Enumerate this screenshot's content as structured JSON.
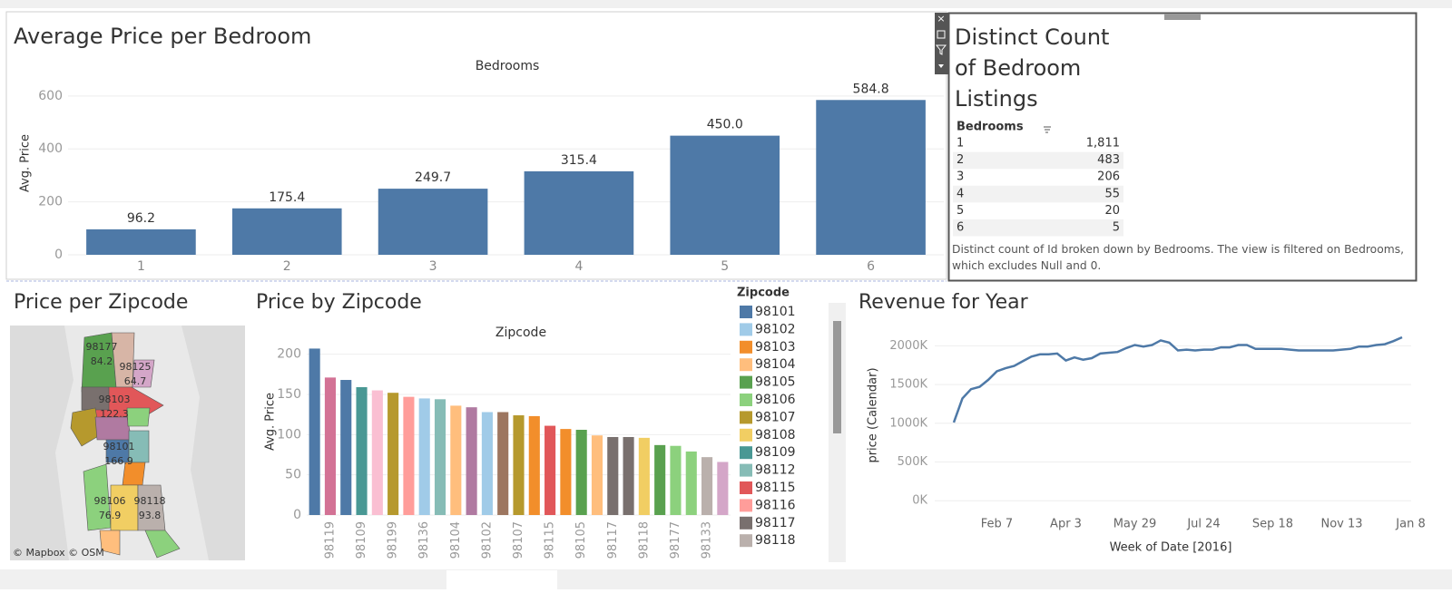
{
  "chart_data": [
    {
      "type": "bar",
      "title": "Average Price per Bedroom",
      "x_header": "Bedrooms",
      "y_label": "Avg. Price",
      "categories": [
        "1",
        "2",
        "3",
        "4",
        "5",
        "6"
      ],
      "values": [
        96.2,
        175.4,
        249.7,
        315.4,
        450.0,
        584.8
      ],
      "value_labels": [
        "96.2",
        "175.4",
        "249.7",
        "315.4",
        "450.0",
        "584.8"
      ],
      "color": "#4e79a7",
      "ylim": [
        0,
        620
      ],
      "yticks": [
        0,
        200,
        400,
        600
      ],
      "grid": true
    },
    {
      "type": "bar",
      "title": "Price by Zipcode",
      "x_header": "Zipcode",
      "y_label": "Avg. Price",
      "categories": [
        null,
        "98119",
        null,
        "98109",
        null,
        "98199",
        null,
        "98136",
        null,
        "98104",
        null,
        "98102",
        null,
        "98107",
        null,
        "98115",
        null,
        "98105",
        null,
        "98117",
        null,
        "98118",
        null,
        "98177",
        null,
        "98133",
        null
      ],
      "values": [
        207,
        171,
        168,
        159,
        155,
        152,
        147,
        145,
        144,
        136,
        134,
        128,
        128,
        124,
        123,
        111,
        107,
        106,
        99,
        97,
        97,
        96,
        87,
        86,
        79,
        72,
        66
      ],
      "colors": [
        "#4e79a7",
        "#d37295",
        "#4e79a7",
        "#499894",
        "#fabfd2",
        "#b6992d",
        "#ff9d9a",
        "#a0cbe8",
        "#86bcb6",
        "#ffbe7d",
        "#b07aa1",
        "#a0cbe8",
        "#9d7660",
        "#b6992d",
        "#f28e2b",
        "#e15759",
        "#f28e2b",
        "#59a14f",
        "#ffbe7d",
        "#79706e",
        "#79706e",
        "#f1ce63",
        "#59a14f",
        "#8cd17d",
        "#8cd17d",
        "#bab0ac",
        "#d4a6c8"
      ],
      "ylim": [
        0,
        212
      ],
      "yticks": [
        0,
        50,
        100,
        150,
        200
      ],
      "grid": true,
      "legend": {
        "title": "Zipcode",
        "position": "right",
        "items": [
          {
            "name": "98101",
            "color": "#4e79a7"
          },
          {
            "name": "98102",
            "color": "#a0cbe8"
          },
          {
            "name": "98103",
            "color": "#f28e2b"
          },
          {
            "name": "98104",
            "color": "#ffbe7d"
          },
          {
            "name": "98105",
            "color": "#59a14f"
          },
          {
            "name": "98106",
            "color": "#8cd17d"
          },
          {
            "name": "98107",
            "color": "#b6992d"
          },
          {
            "name": "98108",
            "color": "#f1ce63"
          },
          {
            "name": "98109",
            "color": "#499894"
          },
          {
            "name": "98112",
            "color": "#86bcb6"
          },
          {
            "name": "98115",
            "color": "#e15759"
          },
          {
            "name": "98116",
            "color": "#ff9d9a"
          },
          {
            "name": "98117",
            "color": "#79706e"
          },
          {
            "name": "98118",
            "color": "#bab0ac"
          }
        ]
      }
    },
    {
      "type": "line",
      "title": "Revenue for Year",
      "x_label": "Week of Date [2016]",
      "y_label": "price (Calendar)",
      "x": [
        "Jan 3",
        "Jan 10",
        "Jan 17",
        "Jan 24",
        "Jan 31",
        "Feb 7",
        "Feb 14",
        "Feb 21",
        "Feb 28",
        "Mar 6",
        "Mar 13",
        "Mar 20",
        "Mar 27",
        "Apr 3",
        "Apr 10",
        "Apr 17",
        "Apr 24",
        "May 1",
        "May 8",
        "May 15",
        "May 22",
        "May 29",
        "Jun 5",
        "Jun 12",
        "Jun 19",
        "Jun 26",
        "Jul 3",
        "Jul 10",
        "Jul 17",
        "Jul 24",
        "Jul 31",
        "Aug 7",
        "Aug 14",
        "Aug 21",
        "Aug 28",
        "Sep 4",
        "Sep 11",
        "Sep 18",
        "Sep 25",
        "Oct 2",
        "Oct 9",
        "Oct 16",
        "Oct 23",
        "Oct 30",
        "Nov 6",
        "Nov 13",
        "Nov 20",
        "Nov 27",
        "Dec 4",
        "Dec 11",
        "Dec 18",
        "Dec 25",
        "Jan 1"
      ],
      "series": [
        {
          "name": "price (Calendar)",
          "color": "#4e79a7",
          "values": [
            1010000,
            1320000,
            1440000,
            1470000,
            1560000,
            1670000,
            1710000,
            1740000,
            1800000,
            1860000,
            1890000,
            1890000,
            1900000,
            1810000,
            1850000,
            1820000,
            1840000,
            1900000,
            1910000,
            1920000,
            1970000,
            2010000,
            1990000,
            2010000,
            2070000,
            2040000,
            1940000,
            1950000,
            1940000,
            1950000,
            1950000,
            1980000,
            1980000,
            2010000,
            2010000,
            1960000,
            1960000,
            1960000,
            1960000,
            1950000,
            1940000,
            1940000,
            1940000,
            1940000,
            1940000,
            1950000,
            1960000,
            1990000,
            1990000,
            2010000,
            2020000,
            2060000,
            2110000
          ]
        }
      ],
      "xticks": [
        "Feb 7",
        "Apr 3",
        "May 29",
        "Jul 24",
        "Sep 18",
        "Nov 13",
        "Jan 8"
      ],
      "ylim": [
        -150000,
        2250000
      ],
      "yticks": [
        {
          "value": 0,
          "label": "0K"
        },
        {
          "value": 500000,
          "label": "500K"
        },
        {
          "value": 1000000,
          "label": "1000K"
        },
        {
          "value": 1500000,
          "label": "1500K"
        },
        {
          "value": 2000000,
          "label": "2000K"
        }
      ],
      "grid": true
    }
  ],
  "table": {
    "title": "Distinct Count of Bedroom Listings",
    "header": "Bedrooms",
    "rows": [
      [
        "1",
        "1,811"
      ],
      [
        "2",
        "483"
      ],
      [
        "3",
        "206"
      ],
      [
        "4",
        "55"
      ],
      [
        "5",
        "20"
      ],
      [
        "6",
        "5"
      ]
    ],
    "caption": "Distinct count of Id broken down by Bedrooms. The view is filtered on Bedrooms, which excludes Null and 0."
  },
  "map": {
    "title": "Price per Zipcode",
    "attribution": "© Mapbox © OSM",
    "regions": [
      {
        "zipcode": "98177",
        "value": 84.2
      },
      {
        "zipcode": "98125",
        "value": 64.7
      },
      {
        "zipcode": "98103",
        "value": 122.3
      },
      {
        "zipcode": "98101",
        "value": 166.9
      },
      {
        "zipcode": "98106",
        "value": 76.9
      },
      {
        "zipcode": "98118",
        "value": 93.8
      }
    ]
  }
}
